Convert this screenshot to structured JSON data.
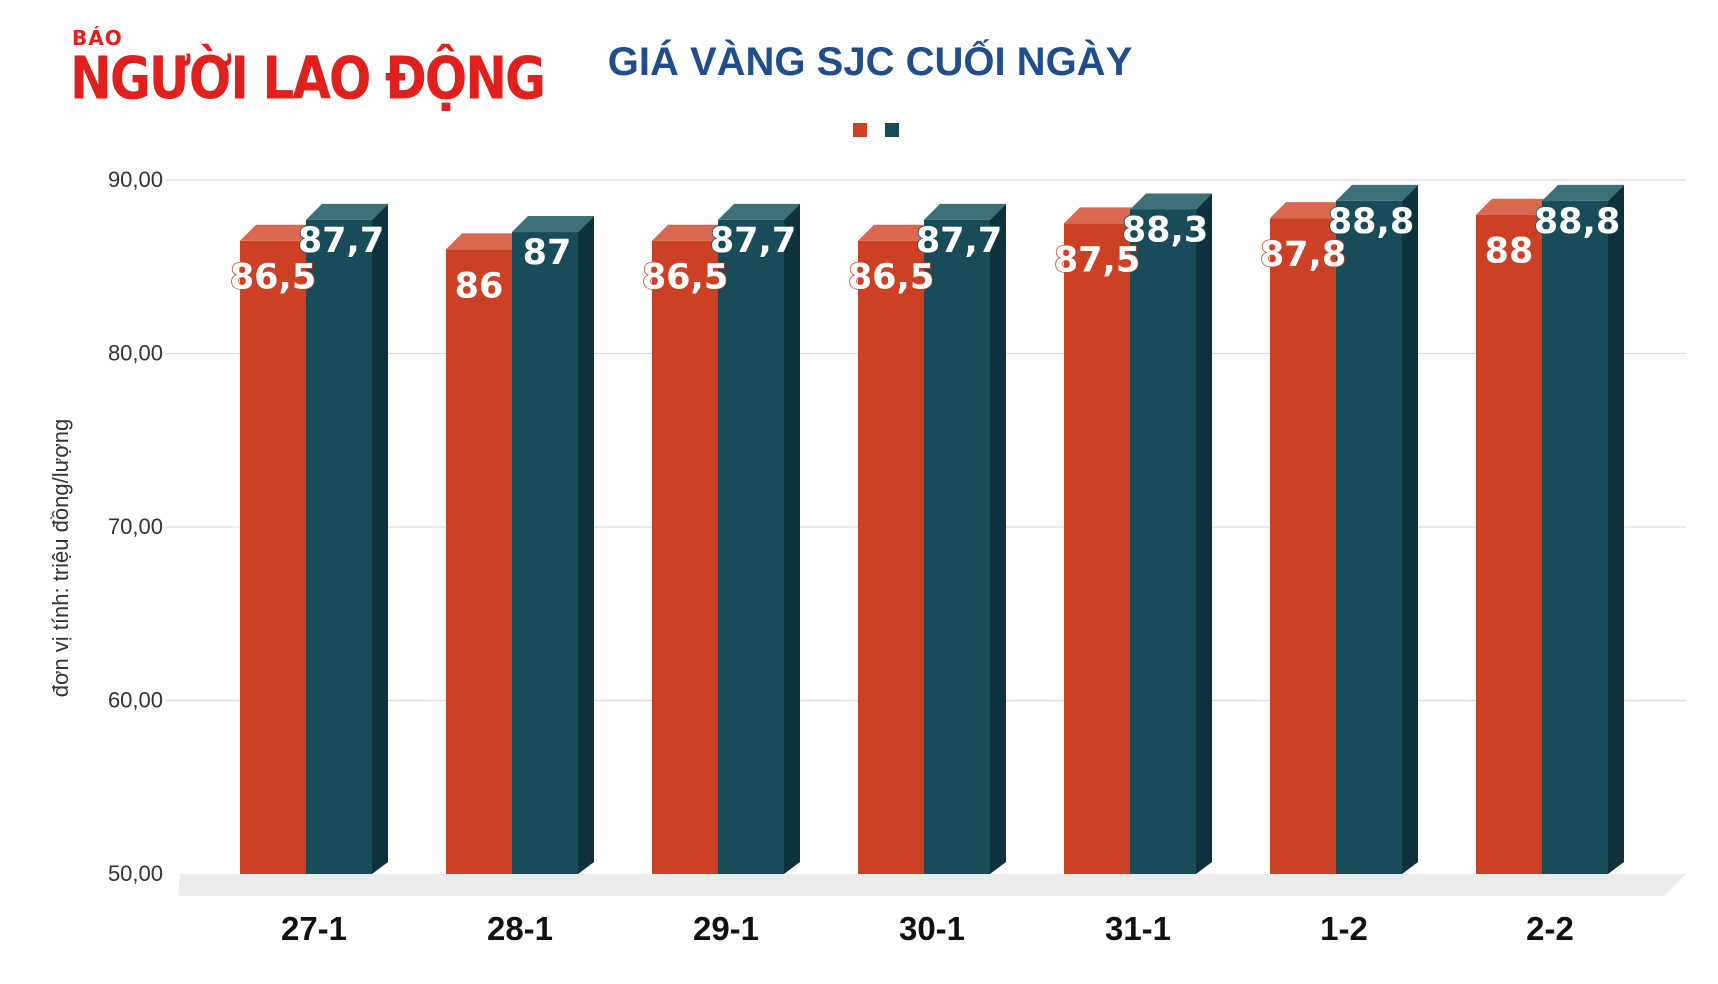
{
  "logo": {
    "small": "BÁO",
    "big": "NGƯỜI LAO ĐỘNG"
  },
  "chart_data": {
    "type": "bar",
    "title": "GIÁ VÀNG SJC CUỐI NGÀY",
    "ylabel": "đơn vị tính: triệu đồng/lượng",
    "xlabel": "",
    "ylim": [
      50,
      90
    ],
    "yticks": [
      "50,00",
      "60,00",
      "70,00",
      "80,00",
      "90,00"
    ],
    "categories": [
      "27-1",
      "28-1",
      "29-1",
      "30-1",
      "31-1",
      "1-2",
      "2-2"
    ],
    "series": [
      {
        "values": [
          86.5,
          86,
          86.5,
          86.5,
          87.5,
          87.8,
          88
        ],
        "labels": [
          "86,5",
          "86",
          "86,5",
          "86,5",
          "87,5",
          "87,8",
          "88"
        ],
        "color": "#cc4125",
        "top_color": "#d96850",
        "side_color": "#a13219"
      },
      {
        "values": [
          87.7,
          87,
          87.7,
          87.7,
          88.3,
          88.8,
          88.8
        ],
        "labels": [
          "87,7",
          "87",
          "87,7",
          "87,7",
          "88,3",
          "88,8",
          "88,8"
        ],
        "color": "#174c58",
        "top_color": "#3e7078",
        "side_color": "#0e323b"
      }
    ],
    "legend": "top-center",
    "grid": true
  }
}
